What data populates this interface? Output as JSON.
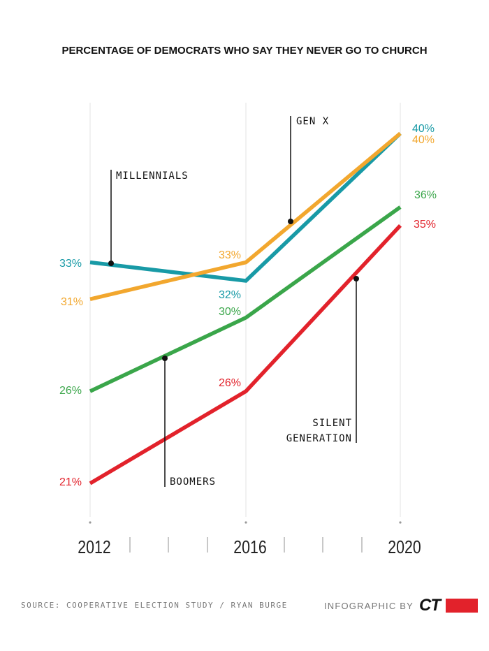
{
  "chart_data": {
    "type": "line",
    "title": "PERCENTAGE OF DEMOCRATS WHO SAY THEY NEVER GO TO CHURCH",
    "x": [
      "2012",
      "2016",
      "2020"
    ],
    "ylim": [
      17,
      44
    ],
    "grid": true,
    "series": [
      {
        "name": "MILLENNIALS",
        "color": "#189aa6",
        "values": [
          33,
          32,
          40
        ],
        "labels": [
          "33%",
          "32%",
          "40%"
        ]
      },
      {
        "name": "GEN X",
        "color": "#f2a72e",
        "values": [
          31,
          33,
          40
        ],
        "labels": [
          "31%",
          "33%",
          "40%"
        ]
      },
      {
        "name": "BOOMERS",
        "color": "#3aa64a",
        "values": [
          26,
          30,
          36
        ],
        "labels": [
          "26%",
          "30%",
          "36%"
        ]
      },
      {
        "name": "SILENT GENERATION",
        "color": "#e2222b",
        "values": [
          21,
          26,
          35
        ],
        "labels": [
          "21%",
          "26%",
          "35%"
        ]
      }
    ],
    "annotations": [
      {
        "series": "MILLENNIALS",
        "lines": [
          "MILLENNIALS"
        ]
      },
      {
        "series": "GEN X",
        "lines": [
          "GEN X"
        ]
      },
      {
        "series": "BOOMERS",
        "lines": [
          "BOOMERS"
        ]
      },
      {
        "series": "SILENT GENERATION",
        "lines": [
          "SILENT",
          "GENERATION"
        ]
      }
    ]
  },
  "footer": {
    "source": "SOURCE: COOPERATIVE ELECTION STUDY / RYAN BURGE",
    "credit": "INFOGRAPHIC BY",
    "logo": "CT"
  }
}
